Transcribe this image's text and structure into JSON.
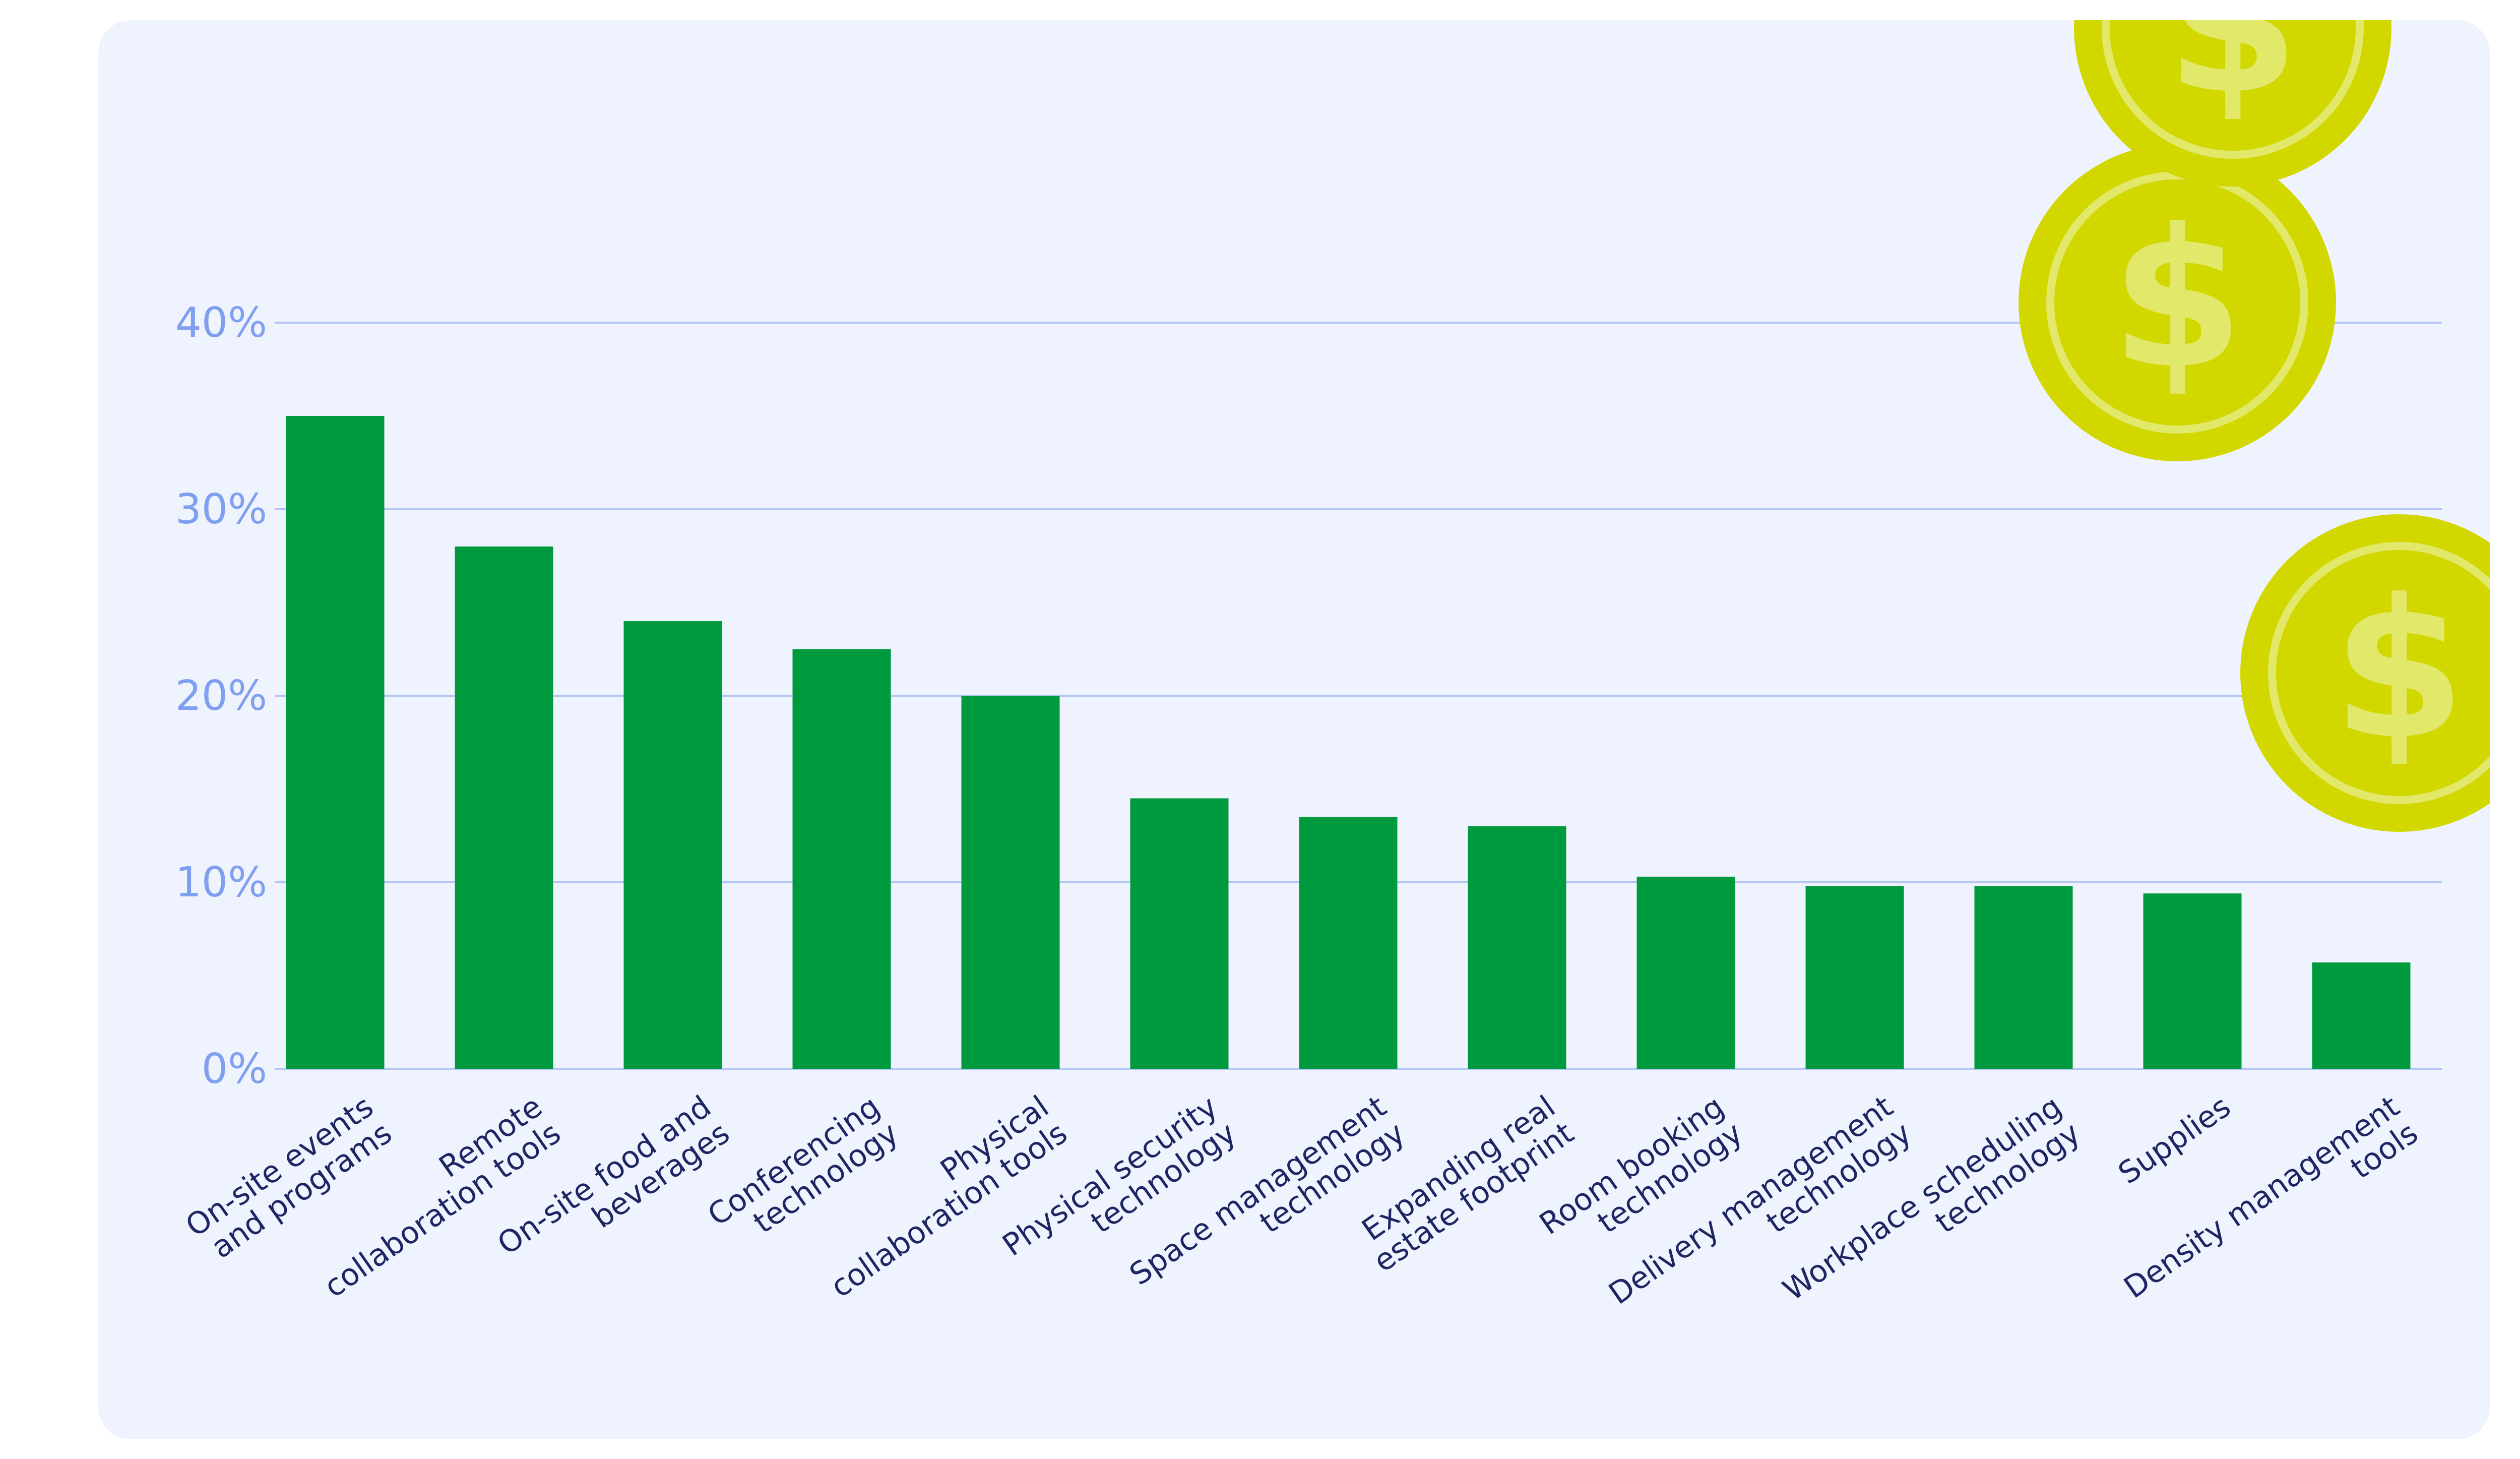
{
  "chart_data": {
    "type": "bar",
    "categories": [
      "On-site events\nand programs",
      "Remote\ncollaboration tools",
      "On-site food and\nbeverages",
      "Conferencing\ntechnology",
      "Physical\ncollaboration tools",
      "Physical security\ntechnology",
      "Space management\ntechnology",
      "Expanding real\nestate footprint",
      "Room booking\ntechnology",
      "Delivery management\ntechnology",
      "Workplace scheduling\ntechnology",
      "Supplies",
      "Density management\ntools"
    ],
    "values": [
      35,
      28,
      24,
      22.5,
      20,
      14.5,
      13.5,
      13,
      10.3,
      9.8,
      9.8,
      9.4,
      5.7
    ],
    "title": "",
    "xlabel": "",
    "ylabel": "",
    "ylim": [
      0,
      40
    ],
    "yticks": [
      0,
      10,
      20,
      30,
      40
    ],
    "ytick_labels": [
      "0%",
      "10%",
      "20%",
      "30%",
      "40%"
    ],
    "grid": true,
    "colors": {
      "bar": "#009a3e",
      "grid": "#b4c6f5",
      "tick_label": "#7f9ff0",
      "category_label": "#1d2663",
      "background": "#eff3fd",
      "coin": "#d2d700",
      "coin_ring": "#e1e86a"
    },
    "decorations": [
      "dollar-coin-icon",
      "dollar-coin-icon",
      "dollar-coin-icon"
    ]
  },
  "coin_symbol": "$"
}
